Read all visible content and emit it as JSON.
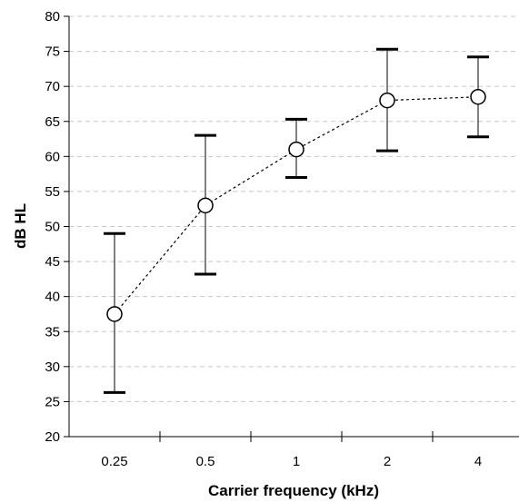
{
  "chart_data": {
    "type": "line",
    "title": "",
    "xlabel": "Carrier frequency (kHz)",
    "ylabel": "dB HL",
    "categories": [
      "0.25",
      "0.5",
      "1",
      "2",
      "4"
    ],
    "ylim": [
      20,
      80
    ],
    "y_ticks": [
      20,
      25,
      30,
      35,
      40,
      45,
      50,
      55,
      60,
      65,
      70,
      75,
      80
    ],
    "grid": "horizontal dashed",
    "legend": "none",
    "series": [
      {
        "values": [
          37.5,
          53.0,
          61.0,
          68.0,
          68.5
        ],
        "error_upper": [
          49.0,
          63.0,
          65.3,
          75.3,
          74.2
        ],
        "error_lower": [
          26.3,
          43.2,
          57.0,
          60.8,
          62.8
        ],
        "line_style": "dashed",
        "marker": "open-circle"
      }
    ],
    "colors": {
      "line": "#000000",
      "marker_fill": "#ffffff",
      "grid": "#c8c8c8"
    }
  }
}
